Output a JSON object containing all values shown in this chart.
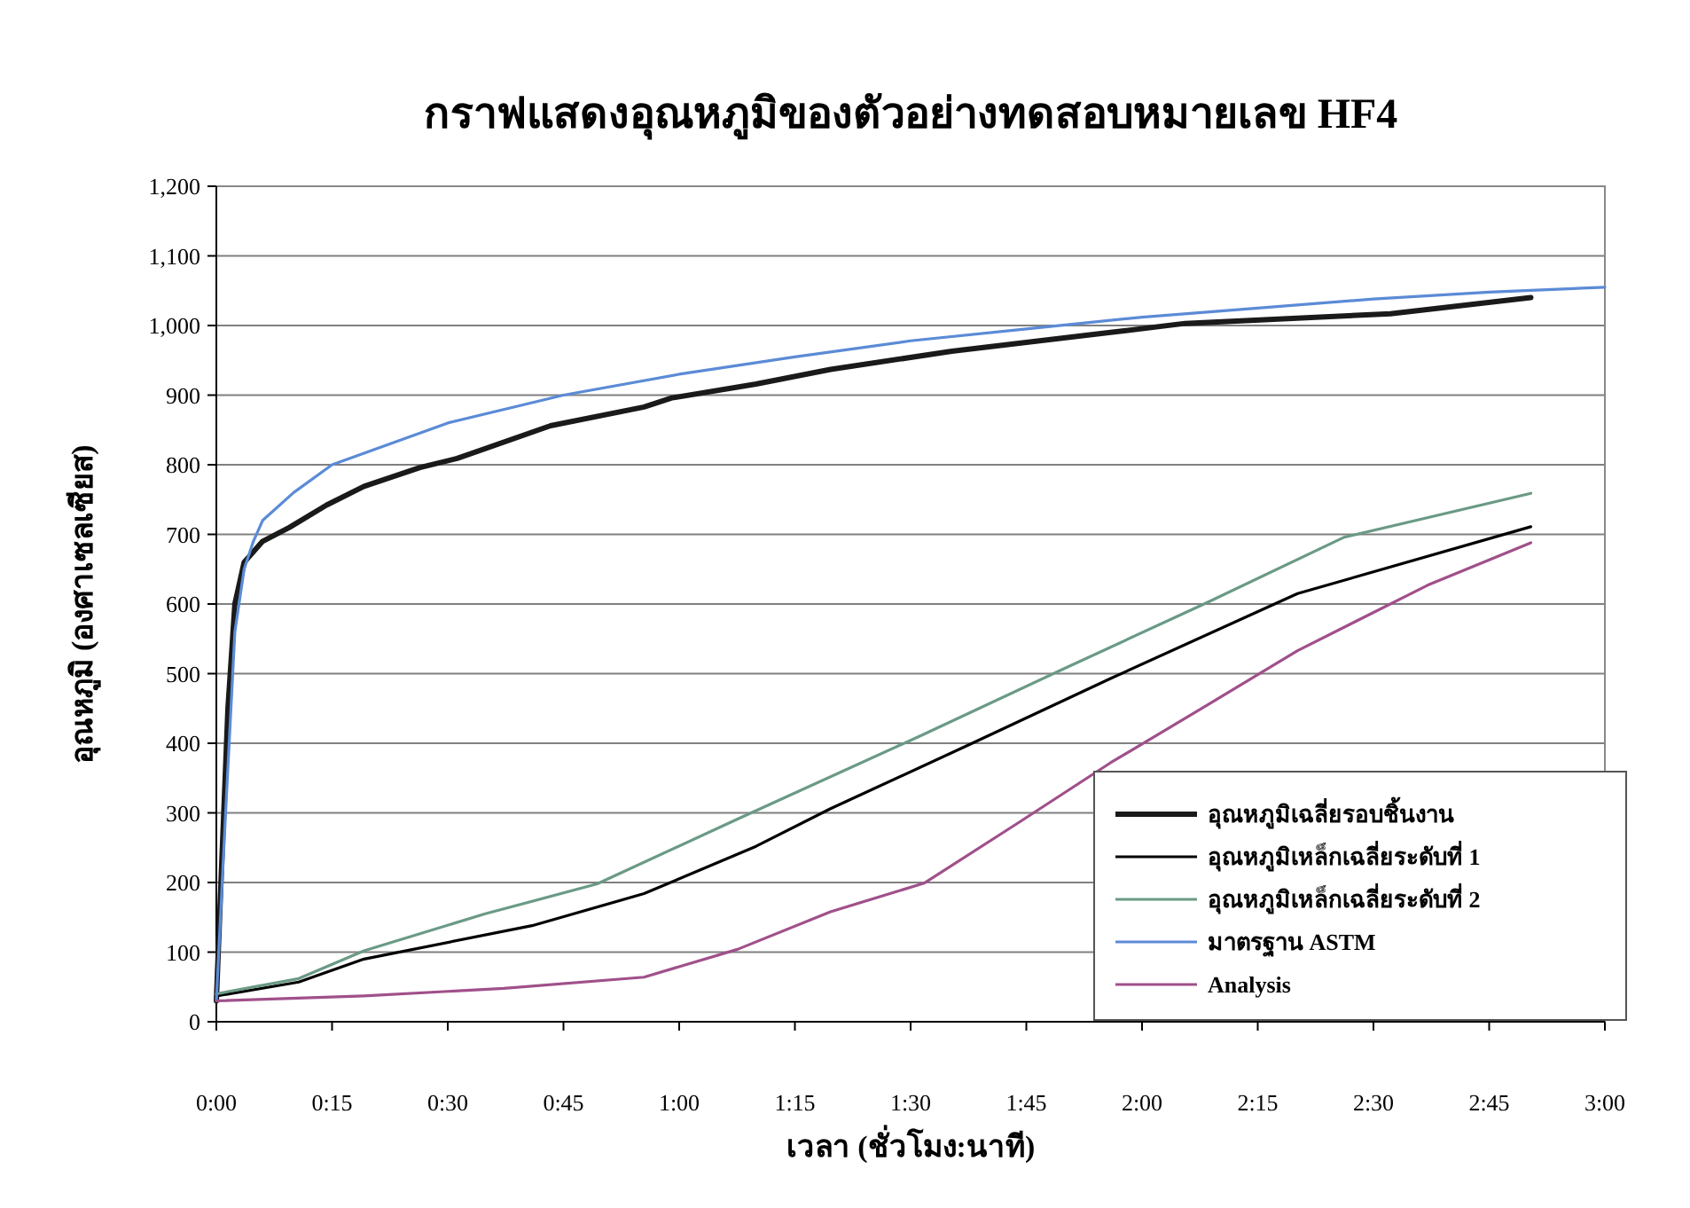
{
  "chart_data": {
    "type": "line",
    "title": "กราฟแสดงอุณหภูมิของตัวอย่างทดสอบหมายเลข HF4",
    "xlabel": "เวลา (ชั่วโมง:นาที)",
    "ylabel": "อุณหภูมิ (องศาเซลเซียส)",
    "xlim": [
      0,
      3
    ],
    "xticks": [
      {
        "value": 0,
        "label": "0:00"
      },
      {
        "value": 0.25,
        "label": "0:15"
      },
      {
        "value": 0.5,
        "label": "0:30"
      },
      {
        "value": 0.75,
        "label": "0:45"
      },
      {
        "value": 1,
        "label": "1:00"
      },
      {
        "value": 1.25,
        "label": "1:15"
      },
      {
        "value": 1.5,
        "label": "1:30"
      },
      {
        "value": 1.75,
        "label": "1:45"
      },
      {
        "value": 2,
        "label": "2:00"
      },
      {
        "value": 2.25,
        "label": "2:15"
      },
      {
        "value": 2.5,
        "label": "2:30"
      },
      {
        "value": 2.75,
        "label": "2:45"
      },
      {
        "value": 3,
        "label": "3:00"
      }
    ],
    "ylim": [
      0,
      1200
    ],
    "yticks": [
      0,
      100,
      200,
      300,
      400,
      500,
      600,
      700,
      800,
      900,
      {
        "value": 1000,
        "label": "1,000"
      },
      {
        "value": 1100,
        "label": "1,100"
      },
      {
        "value": 1200,
        "label": "1,200"
      }
    ],
    "grid": "y",
    "legend": "bottom right",
    "marker": "none",
    "line_style": "solid",
    "series": [
      {
        "name": "อุณหภูมิเฉลี่ยรอบชิ้นงาน",
        "color": "#1a1a1a",
        "x": [
          0,
          0.01,
          0.025,
          0.04,
          0.06,
          0.1,
          0.158,
          0.238,
          0.319,
          0.44,
          0.52,
          0.722,
          0.924,
          0.984,
          1.166,
          1.327,
          1.589,
          1.932,
          2.093,
          2.537,
          2.84
        ],
        "values": [
          30,
          200,
          450,
          600,
          660,
          690,
          710,
          742,
          769,
          796,
          809,
          856,
          883,
          896,
          916,
          937,
          963,
          990,
          1003,
          1017,
          1040
        ]
      },
      {
        "name": "อุณหภูมิเหล็กเฉลี่ยระดับที่ 1",
        "color": "#000000",
        "x": [
          0,
          0.178,
          0.319,
          0.682,
          0.924,
          1.166,
          1.327,
          1.63,
          1.932,
          2.336,
          2.84
        ],
        "values": [
          37,
          57,
          90,
          138,
          184,
          252,
          306,
          399,
          493,
          615,
          711
        ]
      },
      {
        "name": "อุณหภูมิเหล็กเฉลี่ยระดับที่ 2",
        "color": "#6a9a85",
        "x": [
          0,
          0.178,
          0.319,
          0.581,
          0.823,
          1.126,
          1.529,
          1.831,
          2.134,
          2.437,
          2.84
        ],
        "values": [
          40,
          62,
          102,
          155,
          198,
          291,
          413,
          507,
          600,
          696,
          759
        ]
      },
      {
        "name": "มาตรฐาน ASTM",
        "color": "#5b8bd6",
        "x": [
          0,
          0.02,
          0.04,
          0.06,
          0.08,
          0.1,
          0.167,
          0.25,
          0.5,
          0.75,
          1,
          1.25,
          1.5,
          1.75,
          2,
          2.25,
          2.5,
          2.75,
          3
        ],
        "values": [
          30,
          300,
          560,
          650,
          690,
          720,
          760,
          800,
          860,
          900,
          930,
          955,
          978,
          995,
          1012,
          1025,
          1038,
          1048,
          1055
        ]
      },
      {
        "name": "Analysis",
        "color": "#a0508a",
        "x": [
          0,
          0.319,
          0.621,
          0.924,
          1.126,
          1.327,
          1.529,
          1.731,
          1.932,
          2.134,
          2.336,
          2.617,
          2.84
        ],
        "values": [
          30,
          37,
          48,
          64,
          104,
          158,
          199,
          285,
          372,
          452,
          533,
          627,
          688
        ]
      }
    ]
  }
}
